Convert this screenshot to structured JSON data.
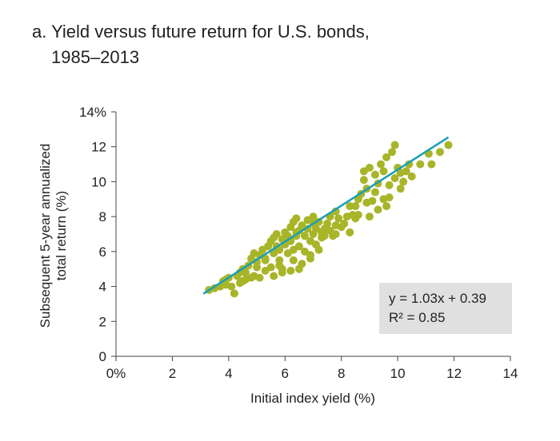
{
  "title_line1": "a. Yield versus future return for U.S. bonds,",
  "title_line2": "1985–2013",
  "chart_data": {
    "type": "scatter",
    "title": "a. Yield versus future return for U.S. bonds, 1985–2013",
    "xlabel": "Initial index yield (%)",
    "ylabel_line1": "Subsequent 5-year annualized",
    "ylabel_line2": "total return (%)",
    "xlim": [
      0,
      14
    ],
    "ylim": [
      0,
      14
    ],
    "xticks": [
      0,
      2,
      4,
      6,
      8,
      10,
      12,
      14
    ],
    "xtick_labels": [
      "0%",
      "2",
      "4",
      "6",
      "8",
      "10",
      "12",
      "14"
    ],
    "yticks": [
      0,
      2,
      4,
      6,
      8,
      10,
      12,
      14
    ],
    "ytick_labels": [
      "0",
      "2",
      "4",
      "6",
      "8",
      "10",
      "12",
      "14%"
    ],
    "grid": false,
    "point_color": "#a8b529",
    "line_color": "#1a9fb5",
    "trendline": {
      "slope": 1.03,
      "intercept": 0.39,
      "x_range": [
        3.1,
        11.8
      ]
    },
    "annotation": {
      "equation": "y = 1.03x + 0.39",
      "r2": "R² = 0.85"
    },
    "points": [
      [
        3.3,
        3.8
      ],
      [
        3.5,
        3.9
      ],
      [
        3.7,
        4.0
      ],
      [
        3.8,
        4.3
      ],
      [
        3.9,
        4.4
      ],
      [
        4.0,
        4.5
      ],
      [
        4.1,
        4.0
      ],
      [
        4.2,
        3.6
      ],
      [
        3.9,
        4.1
      ],
      [
        4.3,
        4.6
      ],
      [
        4.4,
        4.8
      ],
      [
        4.5,
        5.0
      ],
      [
        4.6,
        4.8
      ],
      [
        4.6,
        4.4
      ],
      [
        4.7,
        5.2
      ],
      [
        4.8,
        5.6
      ],
      [
        4.9,
        5.9
      ],
      [
        5.0,
        5.4
      ],
      [
        5.0,
        5.1
      ],
      [
        4.9,
        4.6
      ],
      [
        5.1,
        5.8
      ],
      [
        5.2,
        6.1
      ],
      [
        5.3,
        5.6
      ],
      [
        5.3,
        4.9
      ],
      [
        5.4,
        6.3
      ],
      [
        5.5,
        6.6
      ],
      [
        5.5,
        5.1
      ],
      [
        5.6,
        6.8
      ],
      [
        5.6,
        5.9
      ],
      [
        5.7,
        7.0
      ],
      [
        5.7,
        6.3
      ],
      [
        5.8,
        6.1
      ],
      [
        5.8,
        5.2
      ],
      [
        5.9,
        6.7
      ],
      [
        5.9,
        4.8
      ],
      [
        6.0,
        7.1
      ],
      [
        6.0,
        6.4
      ],
      [
        6.1,
        5.9
      ],
      [
        6.1,
        6.9
      ],
      [
        6.2,
        7.4
      ],
      [
        6.2,
        6.6
      ],
      [
        6.3,
        5.5
      ],
      [
        6.3,
        7.7
      ],
      [
        6.4,
        6.9
      ],
      [
        6.4,
        7.1
      ],
      [
        6.5,
        6.3
      ],
      [
        6.5,
        7.2
      ],
      [
        6.6,
        5.3
      ],
      [
        6.6,
        7.5
      ],
      [
        6.7,
        6.9
      ],
      [
        6.7,
        6.0
      ],
      [
        6.8,
        7.8
      ],
      [
        6.8,
        7.3
      ],
      [
        6.9,
        6.6
      ],
      [
        6.9,
        5.8
      ],
      [
        7.0,
        7.6
      ],
      [
        7.0,
        7.0
      ],
      [
        7.1,
        6.4
      ],
      [
        7.1,
        7.3
      ],
      [
        7.2,
        7.7
      ],
      [
        7.3,
        6.8
      ],
      [
        7.3,
        7.1
      ],
      [
        7.4,
        6.9
      ],
      [
        7.5,
        7.6
      ],
      [
        7.6,
        7.2
      ],
      [
        7.7,
        6.9
      ],
      [
        7.8,
        7.5
      ],
      [
        7.9,
        7.9
      ],
      [
        8.0,
        7.4
      ],
      [
        8.2,
        8.0
      ],
      [
        8.4,
        8.1
      ],
      [
        8.5,
        8.6
      ],
      [
        8.6,
        9.0
      ],
      [
        8.7,
        9.3
      ],
      [
        8.6,
        8.1
      ],
      [
        8.8,
        10.1
      ],
      [
        8.9,
        9.6
      ],
      [
        8.8,
        10.6
      ],
      [
        9.0,
        10.8
      ],
      [
        9.1,
        8.9
      ],
      [
        9.2,
        9.4
      ],
      [
        9.3,
        9.9
      ],
      [
        9.2,
        10.4
      ],
      [
        9.4,
        11.0
      ],
      [
        9.5,
        10.6
      ],
      [
        9.6,
        11.4
      ],
      [
        9.6,
        8.6
      ],
      [
        9.7,
        9.1
      ],
      [
        9.8,
        11.7
      ],
      [
        9.9,
        10.2
      ],
      [
        10.0,
        10.8
      ],
      [
        10.1,
        10.5
      ],
      [
        10.2,
        10.0
      ],
      [
        10.3,
        10.6
      ],
      [
        10.4,
        11.0
      ],
      [
        9.9,
        12.1
      ],
      [
        10.5,
        10.3
      ],
      [
        9.5,
        9.0
      ],
      [
        9.0,
        8.0
      ],
      [
        8.5,
        7.9
      ],
      [
        8.3,
        8.6
      ],
      [
        7.8,
        8.3
      ],
      [
        7.6,
        8.0
      ],
      [
        7.2,
        6.1
      ],
      [
        6.9,
        5.6
      ],
      [
        6.5,
        5.0
      ],
      [
        6.2,
        4.9
      ],
      [
        5.9,
        5.0
      ],
      [
        5.6,
        4.6
      ],
      [
        5.1,
        4.5
      ],
      [
        4.8,
        4.5
      ],
      [
        4.5,
        4.3
      ],
      [
        4.4,
        4.2
      ],
      [
        5.3,
        5.5
      ],
      [
        5.8,
        5.5
      ],
      [
        6.0,
        6.8
      ],
      [
        6.4,
        7.9
      ],
      [
        6.3,
        6.1
      ],
      [
        7.0,
        8.0
      ],
      [
        7.4,
        7.3
      ],
      [
        7.8,
        7.0
      ],
      [
        8.1,
        7.6
      ],
      [
        8.3,
        7.1
      ],
      [
        8.9,
        8.8
      ],
      [
        9.3,
        8.4
      ],
      [
        9.7,
        9.8
      ],
      [
        10.1,
        9.6
      ],
      [
        11.1,
        11.6
      ],
      [
        11.2,
        11.0
      ],
      [
        11.5,
        11.7
      ],
      [
        11.8,
        12.1
      ],
      [
        10.8,
        11.0
      ]
    ]
  }
}
